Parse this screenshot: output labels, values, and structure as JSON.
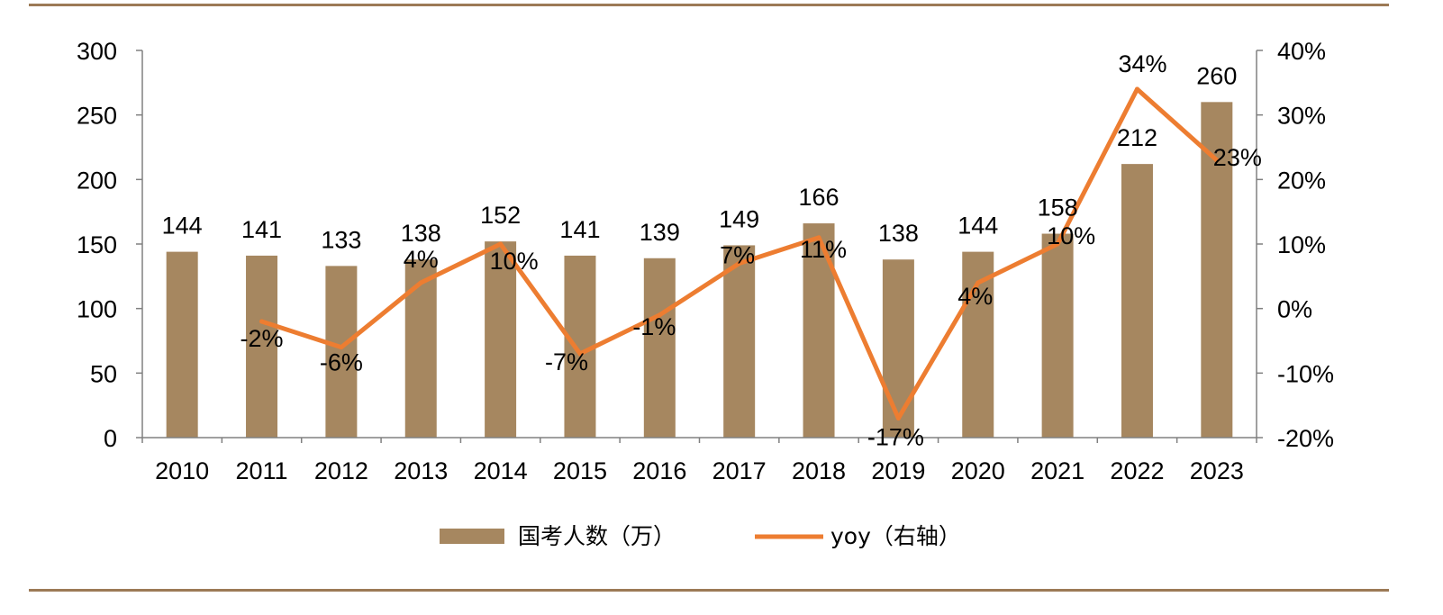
{
  "chart_data": {
    "type": "bar+line",
    "categories": [
      "2010",
      "2011",
      "2012",
      "2013",
      "2014",
      "2015",
      "2016",
      "2017",
      "2018",
      "2019",
      "2020",
      "2021",
      "2022",
      "2023"
    ],
    "series": [
      {
        "name": "国考人数（万）",
        "type": "bar",
        "axis": "left",
        "values": [
          144,
          141,
          133,
          138,
          152,
          141,
          139,
          149,
          166,
          138,
          144,
          158,
          212,
          260
        ],
        "labels": [
          "144",
          "141",
          "133",
          "138",
          "152",
          "141",
          "139",
          "149",
          "166",
          "138",
          "144",
          "158",
          "212",
          "260"
        ],
        "color": "#A68760"
      },
      {
        "name": "yoy（右轴）",
        "type": "line",
        "axis": "right",
        "values": [
          null,
          -2,
          -6,
          4,
          10,
          -7,
          -1,
          7,
          11,
          -17,
          4,
          10,
          34,
          23
        ],
        "labels": [
          "",
          "-2%",
          "-6%",
          "4%",
          "10%",
          "-7%",
          "-1%",
          "7%",
          "11%",
          "-17%",
          "4%",
          "10%",
          "34%",
          "23%"
        ],
        "color": "#ED7D31"
      }
    ],
    "y_left": {
      "ylim": [
        0,
        300
      ],
      "ticks": [
        "0",
        "50",
        "100",
        "150",
        "200",
        "250",
        "300"
      ]
    },
    "y_right": {
      "ylim": [
        -20,
        40
      ],
      "ticks": [
        "-20%",
        "-10%",
        "0%",
        "10%",
        "20%",
        "30%",
        "40%"
      ]
    },
    "grid": false,
    "legend": "bottom"
  },
  "colors": {
    "rule": "#9C7A56",
    "axis": "#808080"
  }
}
